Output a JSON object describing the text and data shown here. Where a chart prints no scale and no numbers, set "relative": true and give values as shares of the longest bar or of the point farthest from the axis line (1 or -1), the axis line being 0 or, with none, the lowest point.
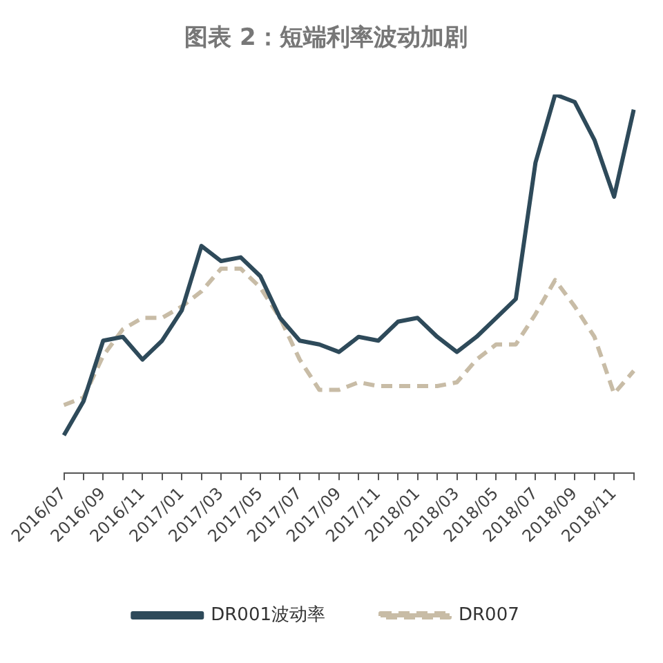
{
  "chart_data": {
    "type": "line",
    "title": "图表 2：短端利率波动加剧",
    "relative": true,
    "legend": "bottom",
    "categories": [
      "2016/07",
      null,
      "2016/09",
      null,
      "2016/11",
      null,
      "2017/01",
      null,
      "2017/03",
      null,
      "2017/05",
      null,
      "2017/07",
      null,
      "2017/09",
      null,
      "2017/11",
      null,
      "2018/01",
      null,
      "2018/03",
      null,
      "2018/05",
      null,
      "2018/07",
      null,
      "2018/09",
      null,
      "2018/11",
      null
    ],
    "series": [
      {
        "name": "DR001波动率",
        "color": "#2e4a5a",
        "line_style": "solid",
        "values": [
          0.1,
          0.19,
          0.35,
          0.36,
          0.3,
          0.35,
          0.43,
          0.6,
          0.56,
          0.57,
          0.52,
          0.41,
          0.35,
          0.34,
          0.32,
          0.36,
          0.35,
          0.4,
          0.41,
          0.36,
          0.32,
          0.36,
          0.41,
          0.46,
          0.82,
          1,
          0.98,
          0.88,
          0.73,
          0.96
        ]
      },
      {
        "name": "DR007",
        "color": "#c8bca6",
        "line_style": "dashed",
        "values": [
          0.18,
          0.2,
          0.31,
          0.38,
          0.41,
          0.41,
          0.44,
          0.48,
          0.54,
          0.54,
          0.49,
          0.41,
          0.3,
          0.22,
          0.22,
          0.24,
          0.23,
          0.23,
          0.23,
          0.23,
          0.24,
          0.3,
          0.34,
          0.34,
          0.42,
          0.51,
          0.44,
          0.36,
          0.21,
          0.27
        ]
      }
    ]
  }
}
